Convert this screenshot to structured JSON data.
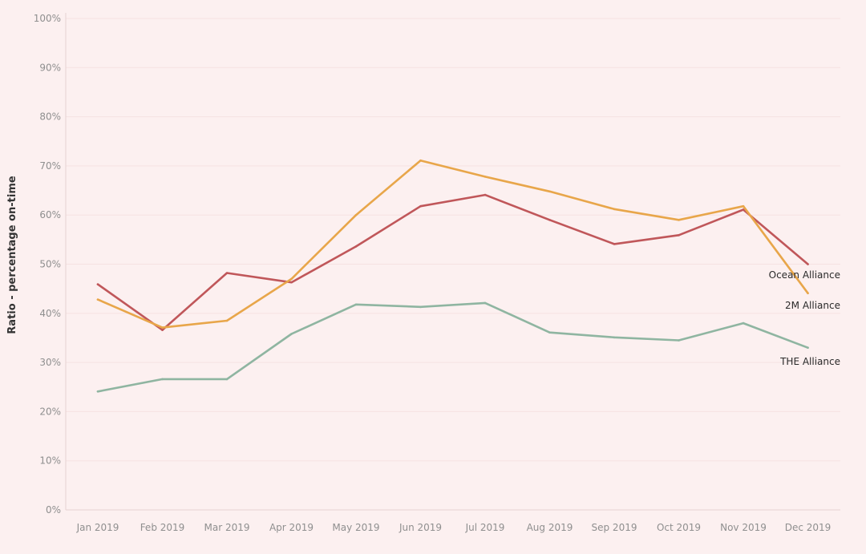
{
  "chart_data": {
    "type": "line",
    "title": "",
    "xlabel": "",
    "ylabel": "Ratio - percentage on-time",
    "ylim": [
      0,
      100
    ],
    "y_ticks": [
      "0%",
      "10%",
      "20%",
      "30%",
      "40%",
      "50%",
      "60%",
      "70%",
      "80%",
      "90%",
      "100%"
    ],
    "grid": true,
    "legend": "none (series labeled at line ends)",
    "categories": [
      "Jan 2019",
      "Feb 2019",
      "Mar 2019",
      "Apr 2019",
      "May 2019",
      "Jun 2019",
      "Jul 2019",
      "Aug 2019",
      "Sep 2019",
      "Oct 2019",
      "Nov 2019",
      "Dec 2019"
    ],
    "series": [
      {
        "name": "Ocean Alliance",
        "color": "#c0575a",
        "values": [
          45.9,
          36.6,
          48.2,
          46.3,
          53.6,
          61.8,
          64.1,
          59.0,
          54.1,
          55.9,
          61.1,
          50.0
        ]
      },
      {
        "name": "2M Alliance",
        "color": "#e8a64a",
        "values": [
          42.8,
          37.1,
          38.5,
          47.0,
          60.0,
          71.1,
          67.8,
          64.8,
          61.2,
          59.0,
          61.8,
          44.1
        ]
      },
      {
        "name": "THE Alliance",
        "color": "#8fb5a1",
        "values": [
          24.1,
          26.6,
          26.6,
          35.8,
          41.8,
          41.3,
          42.1,
          36.1,
          35.1,
          34.5,
          38.0,
          33.0
        ]
      }
    ]
  }
}
